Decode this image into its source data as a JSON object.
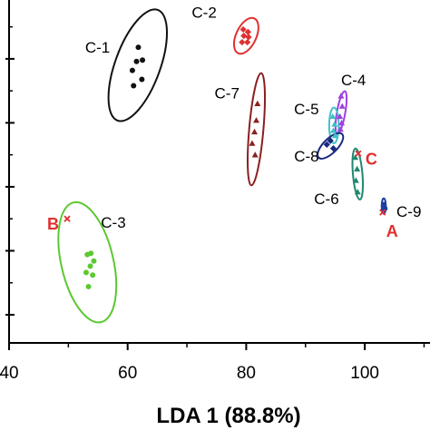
{
  "chart_data": {
    "type": "scatter",
    "title": "",
    "xlabel": "LDA 1 (88.8%)",
    "ylabel": "",
    "xlim": [
      40,
      111
    ],
    "ylim": [
      -12.2,
      14.6
    ],
    "x_ticks": [
      40,
      60,
      80,
      100
    ],
    "y_ticks": [
      -10,
      -5,
      0,
      5,
      10
    ],
    "grid": false,
    "legend": "none",
    "series": [
      {
        "name": "C-1",
        "color": "#111111",
        "marker": "circle",
        "points": [
          [
            61.8,
            10.9
          ],
          [
            61.5,
            9.8
          ],
          [
            62.5,
            9.9
          ],
          [
            60.8,
            9.1
          ],
          [
            62.4,
            8.4
          ],
          [
            61.0,
            7.9
          ]
        ],
        "ellipse": {
          "center": [
            61.7,
            9.5
          ],
          "rx": 3.8,
          "ry": 4.6,
          "rotate": 20
        }
      },
      {
        "name": "C-2",
        "color": "#e03030",
        "marker": "diamond",
        "points": [
          [
            79.5,
            12.3
          ],
          [
            80.3,
            12.1
          ],
          [
            79.6,
            11.8
          ],
          [
            80.4,
            11.7
          ],
          [
            79.3,
            11.3
          ],
          [
            80.2,
            11.3
          ]
        ],
        "ellipse": {
          "center": [
            80.0,
            11.8
          ],
          "rx": 1.7,
          "ry": 1.5,
          "rotate": 25
        }
      },
      {
        "name": "C-3",
        "color": "#5cc832",
        "marker": "circle",
        "points": [
          [
            53.8,
            -5.2
          ],
          [
            53.2,
            -5.3
          ],
          [
            54.3,
            -5.8
          ],
          [
            53.7,
            -6.2
          ],
          [
            53.0,
            -6.7
          ],
          [
            54.1,
            -6.9
          ],
          [
            53.4,
            -7.8
          ]
        ],
        "ellipse": {
          "center": [
            53.2,
            -5.9
          ],
          "rx": 4.4,
          "ry": 4.8,
          "rotate": -13
        }
      },
      {
        "name": "C-4",
        "color": "#a040e0",
        "marker": "triangle",
        "points": [
          [
            96.0,
            7.1
          ],
          [
            96.2,
            6.3
          ],
          [
            95.8,
            5.5
          ],
          [
            96.1,
            5.0
          ],
          [
            95.9,
            4.5
          ]
        ],
        "ellipse": {
          "center": [
            96.0,
            5.8
          ],
          "rx": 0.7,
          "ry": 1.7,
          "rotate": 10
        }
      },
      {
        "name": "C-5",
        "color": "#40c0c8",
        "marker": "triangle",
        "points": [
          [
            94.6,
            5.5
          ],
          [
            94.9,
            4.9
          ],
          [
            94.7,
            4.4
          ],
          [
            95.0,
            4.0
          ]
        ],
        "ellipse": {
          "center": [
            94.8,
            4.8
          ],
          "rx": 0.8,
          "ry": 1.4,
          "rotate": 0
        }
      },
      {
        "name": "C-6",
        "color": "#208870",
        "marker": "triangle",
        "points": [
          [
            98.4,
            2.3
          ],
          [
            98.7,
            1.4
          ],
          [
            98.5,
            0.5
          ],
          [
            98.8,
            -0.4
          ]
        ],
        "ellipse": {
          "center": [
            98.8,
            1.0
          ],
          "rx": 0.8,
          "ry": 2.0,
          "rotate": -5
        }
      },
      {
        "name": "C-7",
        "color": "#8b2020",
        "marker": "triangle",
        "points": [
          [
            81.9,
            6.5
          ],
          [
            81.7,
            5.2
          ],
          [
            81.4,
            4.3
          ],
          [
            81.0,
            3.4
          ],
          [
            81.5,
            2.5
          ]
        ],
        "ellipse": {
          "center": [
            81.7,
            4.5
          ],
          "rx": 1.2,
          "ry": 4.4,
          "rotate": 5
        }
      },
      {
        "name": "C-8",
        "color": "#1a2a80",
        "marker": "diamond",
        "points": [
          [
            93.6,
            3.3
          ],
          [
            94.2,
            3.6
          ],
          [
            94.7,
            3.0
          ]
        ],
        "ellipse": {
          "center": [
            94.2,
            3.2
          ],
          "rx": 1.2,
          "ry": 1.3,
          "rotate": 45
        }
      },
      {
        "name": "C-9",
        "color": "#1a40a0",
        "marker": "circle",
        "points": [
          [
            103.2,
            -1.4
          ],
          [
            103.4,
            -1.7
          ]
        ],
        "ellipse": {
          "center": [
            103.2,
            -1.5
          ],
          "rx": 0.35,
          "ry": 0.6,
          "rotate": 0
        }
      }
    ],
    "unknowns": [
      {
        "name": "A",
        "color": "#e03030",
        "marker": "x",
        "point": [
          103.0,
          -2.0
        ]
      },
      {
        "name": "B",
        "color": "#e03030",
        "marker": "x",
        "point": [
          49.8,
          -2.5
        ]
      },
      {
        "name": "C",
        "color": "#e03030",
        "marker": "x",
        "point": [
          98.9,
          2.6
        ]
      }
    ]
  }
}
